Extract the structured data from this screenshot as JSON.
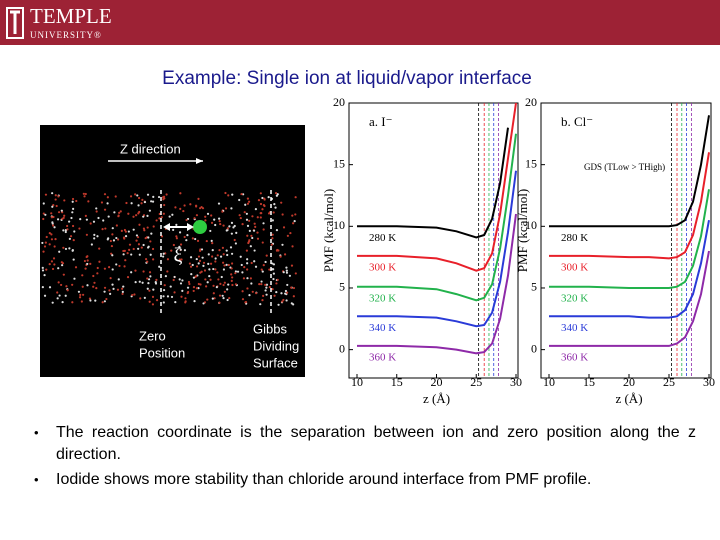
{
  "header": {
    "logo": "TEMPLE",
    "subtitle": "UNIVERSITY®"
  },
  "title": "Example: Single ion at liquid/vapor interface",
  "simulation": {
    "z_label": "Z direction",
    "xi": "ξ",
    "zero": [
      "Zero",
      "Position"
    ],
    "gibbs": [
      "Gibbs",
      "Dividing",
      "Surface"
    ]
  },
  "panels": [
    {
      "type": "line",
      "title": "a. I⁻",
      "ylabel": "PMF (kcal/mol)",
      "xlabel": "z (Å)",
      "xlim": [
        10,
        30
      ],
      "ylim": [
        -2.3,
        20
      ],
      "xticks": [
        10,
        15,
        20,
        25,
        30
      ],
      "yticks": [
        0,
        5,
        10,
        15,
        20
      ],
      "x": [
        10,
        15,
        20,
        22.5,
        25,
        26,
        27,
        28,
        29,
        30
      ],
      "series": [
        {
          "name": "280 K",
          "color": "#000000",
          "values": [
            10,
            10,
            9.9,
            9.6,
            9.1,
            9.3,
            10.6,
            13.5,
            18,
            null
          ]
        },
        {
          "name": "300 K",
          "color": "#e8202a",
          "values": [
            7.6,
            7.6,
            7.4,
            7.0,
            6.4,
            6.6,
            7.8,
            11,
            15.5,
            20
          ]
        },
        {
          "name": "320 K",
          "color": "#22b24c",
          "values": [
            5.1,
            5.1,
            4.9,
            4.5,
            4.0,
            4.2,
            5.3,
            8.2,
            12.5,
            17.5
          ]
        },
        {
          "name": "340 K",
          "color": "#2a3bd8",
          "values": [
            2.7,
            2.7,
            2.6,
            2.3,
            1.9,
            2.0,
            3.0,
            5.5,
            9.5,
            14.5
          ]
        },
        {
          "name": "360 K",
          "color": "#8e2aa8",
          "values": [
            0.3,
            0.3,
            0.2,
            0.0,
            -0.3,
            -0.2,
            0.5,
            2.5,
            6,
            11
          ]
        }
      ]
    },
    {
      "type": "line",
      "title": "b. Cl⁻",
      "ylabel": "PMF (kcal/mol)",
      "xlabel": "z (Å)",
      "annotation": "GDS (TLow > THigh)",
      "xlim": [
        10,
        30
      ],
      "ylim": [
        -2.3,
        20
      ],
      "xticks": [
        10,
        15,
        20,
        25,
        30
      ],
      "yticks": [
        0,
        5,
        10,
        15,
        20
      ],
      "x": [
        10,
        15,
        20,
        22.5,
        25,
        26,
        27,
        28,
        29,
        30
      ],
      "series": [
        {
          "name": "280 K",
          "color": "#000000",
          "values": [
            10,
            10,
            10,
            10,
            10,
            10.1,
            10.5,
            12,
            15,
            19
          ]
        },
        {
          "name": "300 K",
          "color": "#e8202a",
          "values": [
            7.6,
            7.6,
            7.5,
            7.5,
            7.4,
            7.5,
            7.9,
            9.3,
            12,
            16
          ]
        },
        {
          "name": "320 K",
          "color": "#22b24c",
          "values": [
            5.1,
            5.1,
            5.0,
            5.0,
            5.0,
            5.1,
            5.5,
            6.8,
            9.2,
            13
          ]
        },
        {
          "name": "340 K",
          "color": "#2a3bd8",
          "values": [
            2.7,
            2.7,
            2.7,
            2.6,
            2.6,
            2.7,
            3.2,
            4.5,
            7,
            10.5
          ]
        },
        {
          "name": "360 K",
          "color": "#8e2aa8",
          "values": [
            0.3,
            0.3,
            0.3,
            0.3,
            0.3,
            0.5,
            1.0,
            2.3,
            4.5,
            8
          ]
        }
      ]
    }
  ],
  "bullets": [
    "The reaction coordinate is the separation between ion and zero position along the z direction.",
    "Iodide shows more stability than chloride around interface from PMF profile."
  ]
}
